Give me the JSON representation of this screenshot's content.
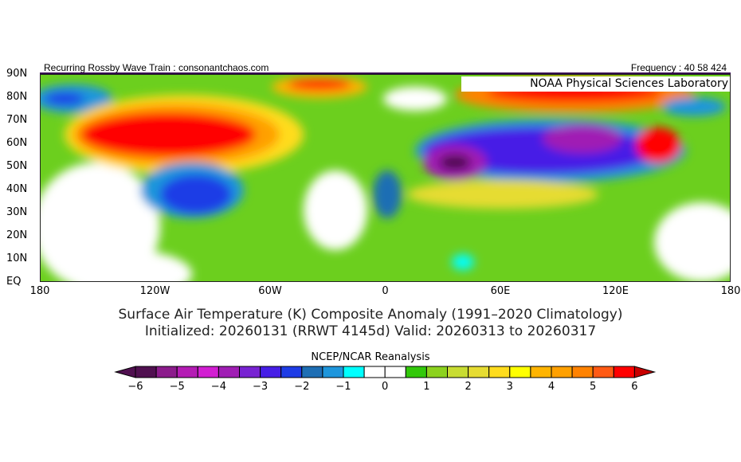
{
  "header": {
    "left": "Recurring Rossby Wave Train : consonantchaos.com",
    "right": "Frequency : 40 58 424",
    "lab": "NOAA Physical Sciences Laboratory"
  },
  "axes": {
    "lat": [
      "90N",
      "80N",
      "70N",
      "60N",
      "50N",
      "40N",
      "30N",
      "20N",
      "10N",
      "EQ"
    ],
    "lon": [
      "180",
      "120W",
      "60W",
      "0",
      "60E",
      "120E",
      "180"
    ]
  },
  "title": {
    "line1": "Surface Air Temperature (K) Composite Anomaly (1991–2020 Climatology)",
    "line2": "Initialized: 20260131 (RRWT 4145d) Valid: 20260313 to 20260317"
  },
  "colorbar": {
    "label": "NCEP/NCAR Reanalysis",
    "ticks": [
      "−6",
      "−5",
      "−4",
      "−3",
      "−2",
      "−1",
      "0",
      "1",
      "2",
      "3",
      "4",
      "5",
      "6"
    ],
    "colors": [
      "#501050",
      "#8c1c8c",
      "#b41cb4",
      "#d21ed2",
      "#a01eb4",
      "#7823d2",
      "#461ee6",
      "#1e3ce6",
      "#1e6eb4",
      "#1e96dc",
      "#00ffff",
      "#ffffff",
      "#ffffff",
      "#32c80a",
      "#8cd21e",
      "#c8dc32",
      "#e6dc32",
      "#ffdc1e",
      "#ffff00",
      "#ffb400",
      "#ffa000",
      "#ff8200",
      "#ff5a14",
      "#ff0000"
    ],
    "under": "#501050",
    "over": "#c80000"
  }
}
